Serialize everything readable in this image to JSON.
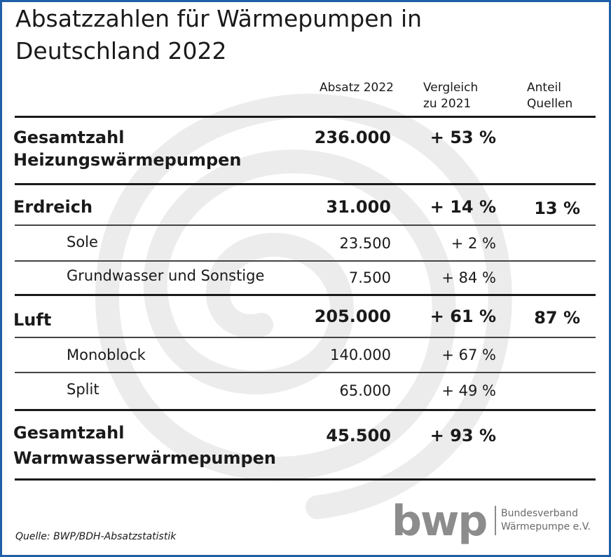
{
  "title_line1": "Absatzzahlen für Wärmepumpen in",
  "title_line2": "Deutschland 2022",
  "colors": {
    "border": "#1f5fa8",
    "watermark": "#ececec",
    "text": "#1a1a1a",
    "logo": "#8c8c8c"
  },
  "chart_data": {
    "type": "table",
    "title": "Absatzzahlen für Wärmepumpen in Deutschland 2022",
    "columns": {
      "absatz": "Absatz 2022",
      "vergleich_l1": "Vergleich",
      "vergleich_l2": "zu 2021",
      "anteil_l1": "Anteil",
      "anteil_l2": "Quellen"
    },
    "rows": [
      {
        "label_l1": "Gesamtzahl",
        "label_l2": "Heizungswärmepumpen",
        "absatz": "236.000",
        "vergleich": "+ 53 %",
        "anteil": ""
      },
      {
        "label": "Erdreich",
        "absatz": "31.000",
        "vergleich": "+ 14 %",
        "anteil": "13 %"
      },
      {
        "label": "Sole",
        "absatz": "23.500",
        "vergleich": "+ 2 %",
        "anteil": ""
      },
      {
        "label": "Grundwasser und Sonstige",
        "absatz": "7.500",
        "vergleich": "+ 84 %",
        "anteil": ""
      },
      {
        "label": "Luft",
        "absatz": "205.000",
        "vergleich": "+ 61 %",
        "anteil": "87 %"
      },
      {
        "label": "Monoblock",
        "absatz": "140.000",
        "vergleich": "+ 67 %",
        "anteil": ""
      },
      {
        "label": "Split",
        "absatz": "65.000",
        "vergleich": "+ 49 %",
        "anteil": ""
      },
      {
        "label_l1": "Gesamtzahl",
        "label_l2": "Warmwasserwärmepumpen",
        "absatz": "45.500",
        "vergleich": "+ 93 %",
        "anteil": ""
      }
    ]
  },
  "source": "Quelle: BWP/BDH-Absatzstatistik",
  "logo": {
    "letters": "bwp",
    "line1": "Bundesverband",
    "line2": "Wärmepumpe e.V."
  }
}
